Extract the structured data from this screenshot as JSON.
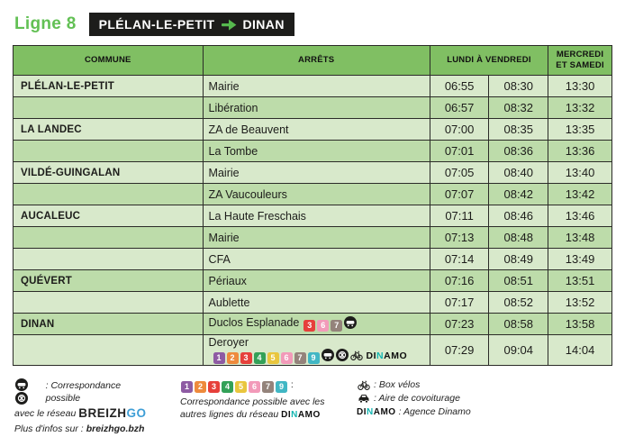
{
  "header": {
    "line_label": "Ligne 8",
    "route_from": "PLÉLAN-LE-PETIT",
    "route_to": "DINAN"
  },
  "table": {
    "headers": {
      "commune": "COMMUNE",
      "arrets": "ARRÊTS",
      "weekdays": "LUNDI À VENDREDI",
      "wed_sat": "MERCREDI ET SAMEDI"
    },
    "rows": [
      {
        "commune": "PLÉLAN-LE-PETIT",
        "arret": "Mairie",
        "icons": [],
        "times": [
          "06:55",
          "08:30",
          "13:30"
        ]
      },
      {
        "commune": "",
        "arret": "Libération",
        "icons": [],
        "times": [
          "06:57",
          "08:32",
          "13:32"
        ]
      },
      {
        "commune": "LA LANDEC",
        "arret": "ZA de Beauvent",
        "icons": [],
        "times": [
          "07:00",
          "08:35",
          "13:35"
        ]
      },
      {
        "commune": "",
        "arret": "La Tombe",
        "icons": [],
        "times": [
          "07:01",
          "08:36",
          "13:36"
        ]
      },
      {
        "commune": "VILDÉ-GUINGALAN",
        "arret": "Mairie",
        "icons": [],
        "times": [
          "07:05",
          "08:40",
          "13:40"
        ]
      },
      {
        "commune": "",
        "arret": "ZA Vaucouleurs",
        "icons": [],
        "times": [
          "07:07",
          "08:42",
          "13:42"
        ]
      },
      {
        "commune": "AUCALEUC",
        "arret": "La Haute Freschais",
        "icons": [],
        "times": [
          "07:11",
          "08:46",
          "13:46"
        ]
      },
      {
        "commune": "",
        "arret": "Mairie",
        "icons": [],
        "times": [
          "07:13",
          "08:48",
          "13:48"
        ]
      },
      {
        "commune": "",
        "arret": "CFA",
        "icons": [],
        "times": [
          "07:14",
          "08:49",
          "13:49"
        ]
      },
      {
        "commune": "QUÉVERT",
        "arret": "Périaux",
        "icons": [],
        "times": [
          "07:16",
          "08:51",
          "13:51"
        ]
      },
      {
        "commune": "",
        "arret": "Aublette",
        "icons": [],
        "times": [
          "07:17",
          "08:52",
          "13:52"
        ]
      },
      {
        "commune": "DINAN",
        "arret": "Duclos Esplanade",
        "icons": [
          "3",
          "6",
          "7",
          "train"
        ],
        "times": [
          "07:23",
          "08:58",
          "13:58"
        ]
      },
      {
        "commune": "",
        "arret": "Deroyer",
        "icons": [
          "1",
          "2",
          "3",
          "4",
          "5",
          "6",
          "7",
          "9",
          "train",
          "bus",
          "bike",
          "dinamo"
        ],
        "times": [
          "07:29",
          "09:04",
          "14:04"
        ]
      }
    ]
  },
  "legend": {
    "breizhgo": {
      "icons": [
        "train",
        "bus"
      ],
      "text1": ": Correspondance possible",
      "text2": "avec le réseau",
      "brand_black": "BREIZH",
      "brand_blue": "GO",
      "info_prefix": "Plus d'infos sur :",
      "info_link": "breizhgo.bzh"
    },
    "dinamo_lines": {
      "numbers": [
        "1",
        "2",
        "3",
        "4",
        "5",
        "6",
        "7",
        "9"
      ],
      "colon": ":",
      "text1": "Correspondance possible avec les",
      "text2": "autres lignes du réseau"
    },
    "services": [
      {
        "icon": "bike",
        "label": ": Box vélos"
      },
      {
        "icon": "carpool",
        "label": ": Aire de covoiturage"
      },
      {
        "icon": "dinamo",
        "label": ": Agence Dinamo"
      }
    ]
  },
  "dinamo_logo": {
    "part1": "DI",
    "accent": "N",
    "part2": "AMO"
  },
  "colors": {
    "title_green": "#62c054",
    "badge_bg": "#1d1d1b",
    "arrow_green": "#56b94e",
    "header_green": "#80bf63",
    "row_light": "#d8e9cb",
    "row_dark": "#bddcaa",
    "breizhgo_blue": "#3e9ed6",
    "dinamo_teal": "#13b5b1",
    "line_colors": {
      "1": "#8e5ba3",
      "2": "#ee8a3c",
      "3": "#e6403b",
      "4": "#33a158",
      "5": "#e9c63e",
      "6": "#f29ab9",
      "7": "#94837b",
      "9": "#41b7c4"
    }
  }
}
